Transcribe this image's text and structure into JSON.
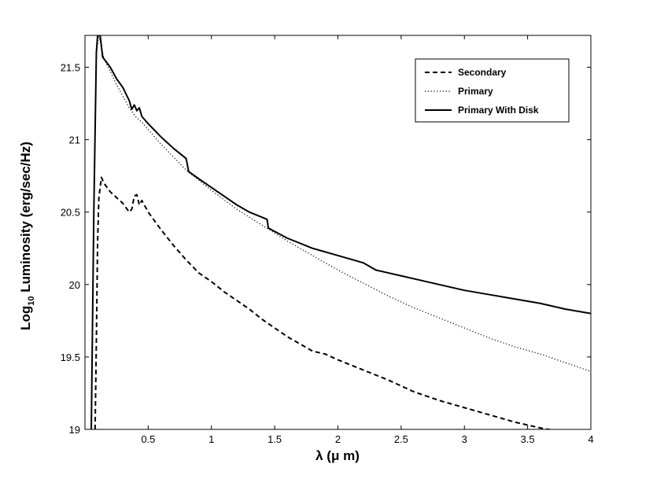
{
  "chart_data": {
    "type": "line",
    "xlabel": "λ (μ m)",
    "ylabel_main": "Log",
    "ylabel_sub": "10",
    "ylabel_rest": " Luminosity (erg/sec/Hz)",
    "xlim": [
      0.0,
      4.0
    ],
    "ylim": [
      19.0,
      21.72
    ],
    "x_ticks": [
      0.5,
      1,
      1.5,
      2,
      2.5,
      3,
      3.5,
      4
    ],
    "x_tick_labels": [
      "0.5",
      "1",
      "1.5",
      "2",
      "2.5",
      "3",
      "3.5",
      "4"
    ],
    "y_ticks": [
      19,
      19.5,
      20,
      20.5,
      21,
      21.5
    ],
    "y_tick_labels": [
      "19",
      "19.5",
      "20",
      "20.5",
      "21",
      "21.5"
    ],
    "grid": false,
    "legend_position": "top-right",
    "series": [
      {
        "name": "Secondary",
        "style": "dashed",
        "color": "#000000",
        "points": [
          [
            0.08,
            19.0
          ],
          [
            0.09,
            19.6
          ],
          [
            0.1,
            20.3
          ],
          [
            0.11,
            20.6
          ],
          [
            0.13,
            20.74
          ],
          [
            0.15,
            20.7
          ],
          [
            0.2,
            20.64
          ],
          [
            0.25,
            20.6
          ],
          [
            0.3,
            20.56
          ],
          [
            0.35,
            20.5
          ],
          [
            0.37,
            20.52
          ],
          [
            0.39,
            20.61
          ],
          [
            0.41,
            20.62
          ],
          [
            0.43,
            20.55
          ],
          [
            0.45,
            20.58
          ],
          [
            0.5,
            20.5
          ],
          [
            0.6,
            20.38
          ],
          [
            0.7,
            20.27
          ],
          [
            0.8,
            20.17
          ],
          [
            0.9,
            20.08
          ],
          [
            1.0,
            20.02
          ],
          [
            1.1,
            19.95
          ],
          [
            1.2,
            19.89
          ],
          [
            1.3,
            19.83
          ],
          [
            1.4,
            19.76
          ],
          [
            1.5,
            19.7
          ],
          [
            1.6,
            19.64
          ],
          [
            1.7,
            19.59
          ],
          [
            1.8,
            19.54
          ],
          [
            1.9,
            19.52
          ],
          [
            2.0,
            19.48
          ],
          [
            2.2,
            19.41
          ],
          [
            2.4,
            19.34
          ],
          [
            2.6,
            19.26
          ],
          [
            2.8,
            19.2
          ],
          [
            3.0,
            19.15
          ],
          [
            3.2,
            19.1
          ],
          [
            3.4,
            19.05
          ],
          [
            3.6,
            19.01
          ],
          [
            3.8,
            18.98
          ],
          [
            4.0,
            18.95
          ]
        ]
      },
      {
        "name": "Primary",
        "style": "dotted",
        "color": "#000000",
        "points": [
          [
            0.05,
            19.0
          ],
          [
            0.07,
            20.5
          ],
          [
            0.09,
            21.6
          ],
          [
            0.11,
            21.72
          ],
          [
            0.15,
            21.56
          ],
          [
            0.2,
            21.47
          ],
          [
            0.25,
            21.38
          ],
          [
            0.3,
            21.3
          ],
          [
            0.35,
            21.22
          ],
          [
            0.4,
            21.16
          ],
          [
            0.45,
            21.12
          ],
          [
            0.5,
            21.07
          ],
          [
            0.6,
            20.97
          ],
          [
            0.7,
            20.88
          ],
          [
            0.8,
            20.79
          ],
          [
            0.9,
            20.72
          ],
          [
            1.0,
            20.65
          ],
          [
            1.2,
            20.52
          ],
          [
            1.4,
            20.41
          ],
          [
            1.6,
            20.3
          ],
          [
            1.8,
            20.2
          ],
          [
            2.0,
            20.1
          ],
          [
            2.2,
            20.01
          ],
          [
            2.4,
            19.92
          ],
          [
            2.6,
            19.84
          ],
          [
            2.8,
            19.77
          ],
          [
            3.0,
            19.7
          ],
          [
            3.2,
            19.63
          ],
          [
            3.4,
            19.57
          ],
          [
            3.6,
            19.52
          ],
          [
            3.8,
            19.46
          ],
          [
            4.0,
            19.4
          ]
        ]
      },
      {
        "name": "Primary With Disk",
        "style": "solid",
        "color": "#000000",
        "points": [
          [
            0.05,
            19.0
          ],
          [
            0.07,
            20.5
          ],
          [
            0.09,
            21.6
          ],
          [
            0.1,
            21.72
          ],
          [
            0.12,
            21.72
          ],
          [
            0.14,
            21.57
          ],
          [
            0.2,
            21.5
          ],
          [
            0.25,
            21.42
          ],
          [
            0.3,
            21.36
          ],
          [
            0.35,
            21.27
          ],
          [
            0.37,
            21.21
          ],
          [
            0.39,
            21.24
          ],
          [
            0.41,
            21.2
          ],
          [
            0.43,
            21.22
          ],
          [
            0.45,
            21.16
          ],
          [
            0.5,
            21.11
          ],
          [
            0.6,
            21.02
          ],
          [
            0.7,
            20.94
          ],
          [
            0.8,
            20.87
          ],
          [
            0.82,
            20.78
          ],
          [
            0.9,
            20.73
          ],
          [
            1.0,
            20.67
          ],
          [
            1.1,
            20.61
          ],
          [
            1.2,
            20.55
          ],
          [
            1.3,
            20.5
          ],
          [
            1.44,
            20.45
          ],
          [
            1.45,
            20.39
          ],
          [
            1.6,
            20.32
          ],
          [
            1.8,
            20.25
          ],
          [
            2.0,
            20.2
          ],
          [
            2.2,
            20.15
          ],
          [
            2.3,
            20.1
          ],
          [
            2.4,
            20.08
          ],
          [
            2.6,
            20.04
          ],
          [
            2.8,
            20.0
          ],
          [
            3.0,
            19.96
          ],
          [
            3.2,
            19.93
          ],
          [
            3.4,
            19.9
          ],
          [
            3.6,
            19.87
          ],
          [
            3.8,
            19.83
          ],
          [
            4.0,
            19.8
          ]
        ]
      }
    ]
  }
}
